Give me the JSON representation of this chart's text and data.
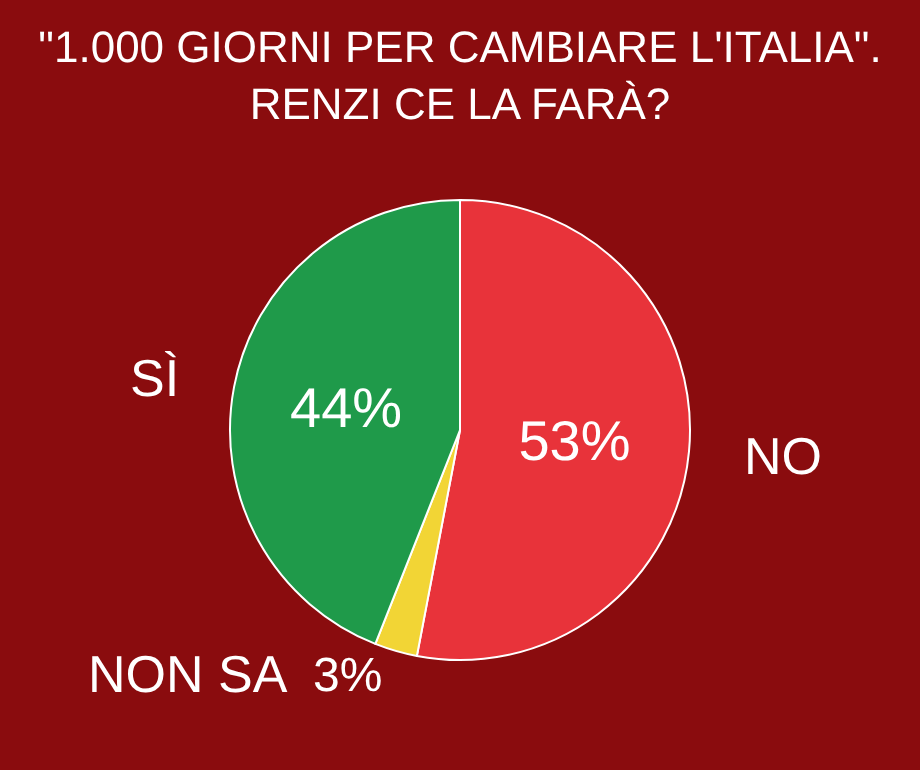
{
  "chart_data": {
    "type": "pie",
    "title": "\"1.000 GIORNI PER CAMBIARE L'ITALIA\".\nRENZI CE LA FARÀ?",
    "categories": [
      "NO",
      "NON SA",
      "SÌ"
    ],
    "values": [
      53,
      3,
      44
    ],
    "colors": [
      "#e8333a",
      "#f2d535",
      "#1f9a4a"
    ],
    "value_labels": [
      "53%",
      "3%",
      "44%"
    ],
    "legend": false
  }
}
